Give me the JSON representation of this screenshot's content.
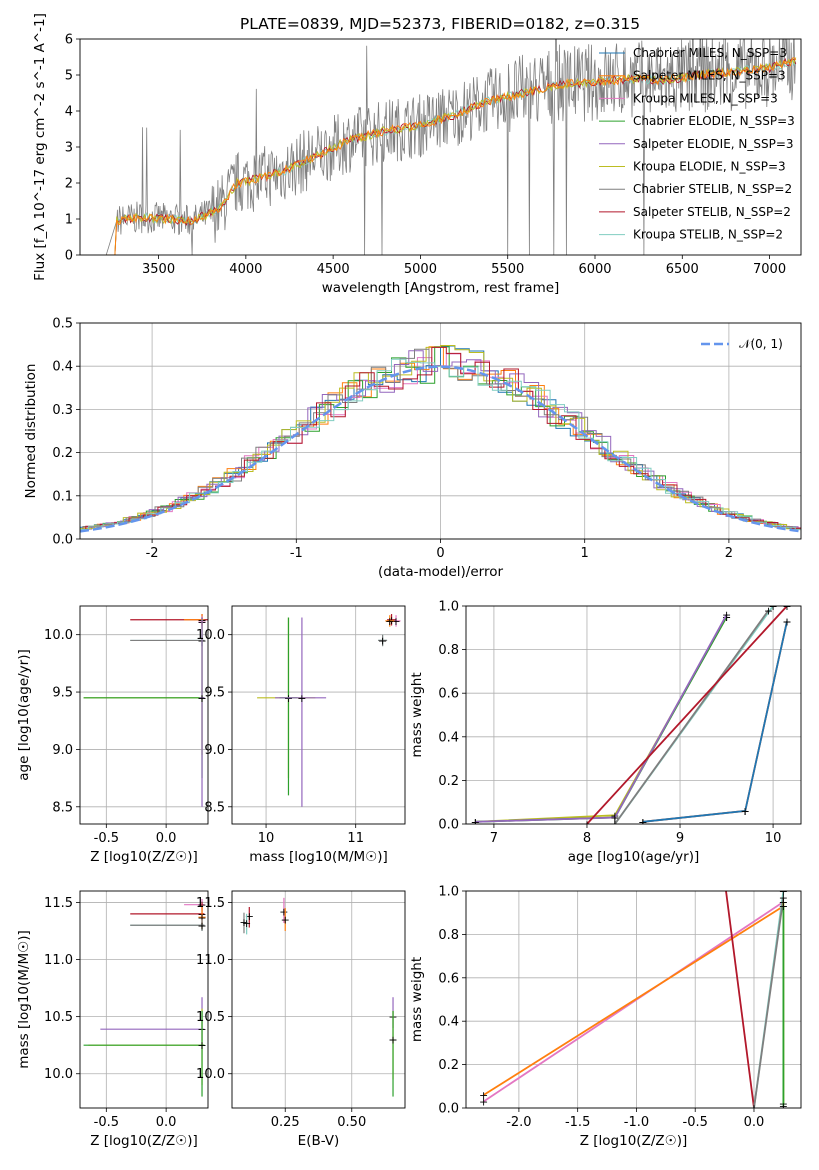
{
  "title": "PLATE=0839, MJD=52373, FIBERID=0182, z=0.315",
  "colors": {
    "Chabrier MILES": "#1f77b4",
    "Salpeter MILES": "#ff7f0e",
    "Kroupa MILES": "#e377c2",
    "Chabrier ELODIE": "#2ca02c",
    "Salpeter ELODIE": "#9467bd",
    "Kroupa ELODIE": "#bcbd22",
    "Chabrier STELIB": "#7f7f7f",
    "Salpeter STELIB": "#b2182b",
    "Kroupa STELIB": "#80cdc1",
    "data": "#808080",
    "gauss": "#6495ed"
  },
  "chart_data": [
    {
      "id": "spectrum",
      "type": "line",
      "xlabel": "wavelength [Angstrom, rest frame]",
      "ylabel": "Flux [f_λ 10^-17 erg cm^-2 s^-1 A^-1]",
      "xlim": [
        3050,
        7180
      ],
      "ylim": [
        0,
        6
      ],
      "xticks": [
        3500,
        4000,
        4500,
        5000,
        5500,
        6000,
        6500,
        7000
      ],
      "yticks": [
        0,
        1,
        2,
        3,
        4,
        5,
        6
      ],
      "legend_position": "top-right",
      "legend": [
        "Chabrier MILES, N_SSP=3",
        "Salpeter MILES, N_SSP=3",
        "Kroupa MILES, N_SSP=3",
        "Chabrier ELODIE, N_SSP=3",
        "Salpeter ELODIE, N_SSP=3",
        "Kroupa ELODIE, N_SSP=3",
        "Chabrier STELIB, N_SSP=2",
        "Salpeter STELIB, N_SSP=2",
        "Kroupa STELIB, N_SSP=2"
      ],
      "continuum_x": [
        3200,
        3260,
        3400,
        3550,
        3700,
        3850,
        3950,
        4050,
        4200,
        4400,
        4600,
        4800,
        5000,
        5200,
        5400,
        5600,
        5800,
        6000,
        6200,
        6400,
        6600,
        6800,
        7000,
        7150
      ],
      "continuum_y": [
        0.0,
        0.95,
        1.05,
        1.0,
        0.95,
        1.3,
        2.0,
        2.1,
        2.3,
        2.75,
        3.2,
        3.45,
        3.6,
        3.9,
        4.3,
        4.5,
        4.75,
        4.8,
        4.9,
        4.85,
        5.0,
        5.1,
        5.2,
        5.4
      ]
    },
    {
      "id": "residuals",
      "type": "line",
      "xlabel": "(data-model)/error",
      "ylabel": "Normed distribution",
      "xlim": [
        -2.5,
        2.5
      ],
      "ylim": [
        0,
        0.5
      ],
      "xticks": [
        -2,
        -1,
        0,
        1,
        2
      ],
      "yticks": [
        0.0,
        0.1,
        0.2,
        0.3,
        0.4,
        0.5
      ],
      "gauss_label": "𝒩(0, 1)",
      "legend_position": "top-right",
      "grid": true
    },
    {
      "id": "age-Z",
      "type": "scatter",
      "xlabel": "Z [log10(Z/Z☉)]",
      "ylabel": "age [log10(age/yr)]",
      "xlim": [
        -0.72,
        0.35
      ],
      "ylim": [
        8.35,
        10.25
      ],
      "xticks": [
        -0.5,
        0.0
      ],
      "yticks": [
        8.5,
        9.0,
        9.5,
        10.0
      ],
      "points": [
        {
          "m": "Salpeter STELIB",
          "x": 0.3,
          "y": 10.13,
          "xerr": [
            0.6,
            0.05
          ],
          "yerr": [
            0.05,
            0.05
          ]
        },
        {
          "m": "Salpeter MILES",
          "x": 0.3,
          "y": 10.13,
          "xerr": [
            0.15,
            0.02
          ],
          "yerr": [
            0.05,
            0.05
          ]
        },
        {
          "m": "Kroupa MILES",
          "x": 0.3,
          "y": 10.11,
          "xerr": [
            0.03,
            0.03
          ],
          "yerr": [
            0.05,
            0.05
          ]
        },
        {
          "m": "Kroupa STELIB",
          "x": 0.3,
          "y": 9.95,
          "xerr": [
            0.6,
            0.02
          ],
          "yerr": [
            0.05,
            0.05
          ]
        },
        {
          "m": "Chabrier STELIB",
          "x": 0.3,
          "y": 9.95,
          "xerr": [
            0.6,
            0.02
          ],
          "yerr": [
            0.05,
            0.05
          ]
        },
        {
          "m": "Kroupa ELODIE",
          "x": 0.3,
          "y": 9.45,
          "xerr": [
            0.99,
            0.02
          ],
          "yerr": [
            0.5,
            0.7
          ]
        },
        {
          "m": "Chabrier ELODIE",
          "x": 0.3,
          "y": 9.45,
          "xerr": [
            0.99,
            0.02
          ],
          "yerr": [
            0.7,
            0.7
          ]
        },
        {
          "m": "Salpeter ELODIE",
          "x": 0.3,
          "y": 9.45,
          "xerr": [
            0.02,
            0.02
          ],
          "yerr": [
            0.95,
            0.7
          ]
        }
      ]
    },
    {
      "id": "age-mass",
      "type": "scatter",
      "xlabel": "mass [log10(M/M☉)]",
      "ylabel": "",
      "xlim": [
        9.62,
        11.55
      ],
      "ylim": [
        8.35,
        10.25
      ],
      "xticks": [
        10,
        11
      ],
      "yticks": [
        8.5,
        9.0,
        9.5,
        10.0
      ],
      "points": [
        {
          "m": "Salpeter STELIB",
          "x": 11.4,
          "y": 10.13,
          "xerr": [
            0.05,
            0.05
          ],
          "yerr": [
            0.05,
            0.05
          ]
        },
        {
          "m": "Kroupa MILES",
          "x": 11.45,
          "y": 10.12,
          "xerr": [
            0.05,
            0.05
          ],
          "yerr": [
            0.05,
            0.05
          ]
        },
        {
          "m": "Salpeter MILES",
          "x": 11.38,
          "y": 10.12,
          "xerr": [
            0.05,
            0.05
          ],
          "yerr": [
            0.05,
            0.05
          ]
        },
        {
          "m": "Kroupa STELIB",
          "x": 11.3,
          "y": 9.95,
          "xerr": [
            0.05,
            0.05
          ],
          "yerr": [
            0.05,
            0.05
          ]
        },
        {
          "m": "Chabrier STELIB",
          "x": 11.3,
          "y": 9.95,
          "xerr": [
            0.05,
            0.05
          ],
          "yerr": [
            0.05,
            0.05
          ]
        },
        {
          "m": "Kroupa ELODIE",
          "x": 10.25,
          "y": 9.45,
          "xerr": [
            0.35,
            0.3
          ],
          "yerr": [
            0.7,
            0.7
          ]
        },
        {
          "m": "Chabrier ELODIE",
          "x": 10.25,
          "y": 9.45,
          "xerr": [
            0.1,
            0.1
          ],
          "yerr": [
            0.85,
            0.7
          ]
        },
        {
          "m": "Salpeter ELODIE",
          "x": 10.4,
          "y": 9.45,
          "xerr": [
            0.3,
            0.27
          ],
          "yerr": [
            0.95,
            0.7
          ]
        }
      ]
    },
    {
      "id": "weight-age",
      "type": "line",
      "xlabel": "age [log10(age/yr)]",
      "ylabel": "mass weight",
      "xlim": [
        6.7,
        10.3
      ],
      "ylim": [
        0,
        1
      ],
      "xticks": [
        7,
        8,
        9,
        10
      ],
      "yticks": [
        0.0,
        0.2,
        0.4,
        0.6,
        0.8,
        1.0
      ],
      "series": [
        {
          "m": "Kroupa ELODIE",
          "x": [
            6.8,
            8.3,
            9.5
          ],
          "y": [
            0.01,
            0.04,
            0.95
          ]
        },
        {
          "m": "Chabrier ELODIE",
          "x": [
            6.8,
            8.3,
            9.5
          ],
          "y": [
            0.01,
            0.03,
            0.95
          ]
        },
        {
          "m": "Salpeter ELODIE",
          "x": [
            6.8,
            8.3,
            9.5
          ],
          "y": [
            0.01,
            0.03,
            0.96
          ]
        },
        {
          "m": "Kroupa STELIB",
          "x": [
            8.3,
            10.0
          ],
          "y": [
            0.0,
            1.0
          ]
        },
        {
          "m": "Chabrier STELIB",
          "x": [
            8.3,
            9.95
          ],
          "y": [
            0.0,
            0.98
          ]
        },
        {
          "m": "Salpeter STELIB",
          "x": [
            8.0,
            10.15
          ],
          "y": [
            0.0,
            1.0
          ]
        },
        {
          "m": "Kroupa MILES",
          "x": [
            8.6,
            9.7,
            10.15
          ],
          "y": [
            0.01,
            0.06,
            0.93
          ]
        },
        {
          "m": "Salpeter MILES",
          "x": [
            8.6,
            9.7,
            10.15
          ],
          "y": [
            0.01,
            0.06,
            0.93
          ]
        },
        {
          "m": "Chabrier MILES",
          "x": [
            8.6,
            9.7,
            10.15
          ],
          "y": [
            0.01,
            0.06,
            0.93
          ]
        }
      ]
    },
    {
      "id": "mass-Z",
      "type": "scatter",
      "xlabel": "Z [log10(Z/Z☉)]",
      "ylabel": "mass [log10(M/M☉)]",
      "xlim": [
        -0.72,
        0.35
      ],
      "ylim": [
        9.7,
        11.6
      ],
      "xticks": [
        -0.5,
        0.0
      ],
      "yticks": [
        10.0,
        10.5,
        11.0,
        11.5
      ],
      "points": [
        {
          "m": "Kroupa MILES",
          "x": 0.3,
          "y": 11.48,
          "xerr": [
            0.15,
            0.02
          ],
          "yerr": [
            0.05,
            0.05
          ]
        },
        {
          "m": "Salpeter STELIB",
          "x": 0.3,
          "y": 11.4,
          "xerr": [
            0.6,
            0.02
          ],
          "yerr": [
            0.1,
            0.1
          ]
        },
        {
          "m": "Salpeter MILES",
          "x": 0.3,
          "y": 11.37,
          "xerr": [
            0.03,
            0.03
          ],
          "yerr": [
            0.1,
            0.1
          ]
        },
        {
          "m": "Kroupa STELIB",
          "x": 0.3,
          "y": 11.3,
          "xerr": [
            0.6,
            0.02
          ],
          "yerr": [
            0.05,
            0.05
          ]
        },
        {
          "m": "Chabrier STELIB",
          "x": 0.3,
          "y": 11.3,
          "xerr": [
            0.6,
            0.02
          ],
          "yerr": [
            0.05,
            0.05
          ]
        },
        {
          "m": "Salpeter ELODIE",
          "x": 0.3,
          "y": 10.39,
          "xerr": [
            0.85,
            0.02
          ],
          "yerr": [
            0.1,
            0.28
          ]
        },
        {
          "m": "Kroupa ELODIE",
          "x": 0.3,
          "y": 10.25,
          "xerr": [
            0.95,
            0.02
          ],
          "yerr": [
            0.35,
            0.32
          ]
        },
        {
          "m": "Chabrier ELODIE",
          "x": 0.3,
          "y": 10.25,
          "xerr": [
            0.99,
            0.02
          ],
          "yerr": [
            0.45,
            0.3
          ]
        }
      ]
    },
    {
      "id": "mass-EBV",
      "type": "scatter",
      "xlabel": "E(B-V)",
      "ylabel": "",
      "xlim": [
        0.05,
        0.7
      ],
      "ylim": [
        9.7,
        11.6
      ],
      "xticks": [
        0.25,
        0.5
      ],
      "yticks": [
        10.0,
        10.5,
        11.0,
        11.5
      ],
      "points": [
        {
          "m": "Kroupa MILES",
          "x": 0.245,
          "y": 11.42,
          "xerr": [
            0.0,
            0.0
          ],
          "yerr": [
            0.1,
            0.12
          ]
        },
        {
          "m": "Salpeter MILES",
          "x": 0.25,
          "y": 11.35,
          "xerr": [
            0.0,
            0.0
          ],
          "yerr": [
            0.1,
            0.1
          ]
        },
        {
          "m": "Salpeter STELIB",
          "x": 0.115,
          "y": 11.38,
          "xerr": [
            0.0,
            0.0
          ],
          "yerr": [
            0.1,
            0.08
          ]
        },
        {
          "m": "Chabrier STELIB",
          "x": 0.095,
          "y": 11.33,
          "xerr": [
            0.0,
            0.0
          ],
          "yerr": [
            0.1,
            0.08
          ]
        },
        {
          "m": "Kroupa STELIB",
          "x": 0.105,
          "y": 11.32,
          "xerr": [
            0.0,
            0.0
          ],
          "yerr": [
            0.1,
            0.08
          ]
        },
        {
          "m": "Salpeter ELODIE",
          "x": 0.655,
          "y": 10.5,
          "xerr": [
            0.0,
            0.0
          ],
          "yerr": [
            0.1,
            0.17
          ]
        },
        {
          "m": "Kroupa ELODIE",
          "x": 0.655,
          "y": 10.3,
          "xerr": [
            0.0,
            0.0
          ],
          "yerr": [
            0.35,
            0.25
          ]
        },
        {
          "m": "Chabrier ELODIE",
          "x": 0.655,
          "y": 10.3,
          "xerr": [
            0.0,
            0.0
          ],
          "yerr": [
            0.5,
            0.25
          ]
        }
      ]
    },
    {
      "id": "weight-Z",
      "type": "line",
      "xlabel": "Z [log10(Z/Z☉)]",
      "ylabel": "mass weight",
      "xlim": [
        -2.45,
        0.4
      ],
      "ylim": [
        0,
        1
      ],
      "xticks": [
        -2.0,
        -1.5,
        -1.0,
        -0.5,
        0.0
      ],
      "yticks": [
        0.0,
        0.2,
        0.4,
        0.6,
        0.8,
        1.0
      ],
      "series": [
        {
          "m": "Kroupa MILES",
          "x": [
            -2.3,
            0.25
          ],
          "y": [
            0.03,
            0.95
          ]
        },
        {
          "m": "Salpeter MILES",
          "x": [
            -2.3,
            0.25
          ],
          "y": [
            0.06,
            0.93
          ]
        },
        {
          "m": "Salpeter STELIB",
          "x": [
            -0.25,
            0.0
          ],
          "y": [
            1.05,
            0.0
          ]
        },
        {
          "m": "Kroupa STELIB",
          "x": [
            0.0,
            0.25
          ],
          "y": [
            0.0,
            1.0
          ]
        },
        {
          "m": "Chabrier STELIB",
          "x": [
            0.0,
            0.25
          ],
          "y": [
            0.0,
            0.97
          ]
        },
        {
          "m": "Kroupa ELODIE",
          "x": [
            0.25,
            0.25
          ],
          "y": [
            0.02,
            0.95
          ]
        },
        {
          "m": "Chabrier ELODIE",
          "x": [
            0.25,
            0.25
          ],
          "y": [
            0.01,
            0.93
          ]
        }
      ]
    }
  ]
}
